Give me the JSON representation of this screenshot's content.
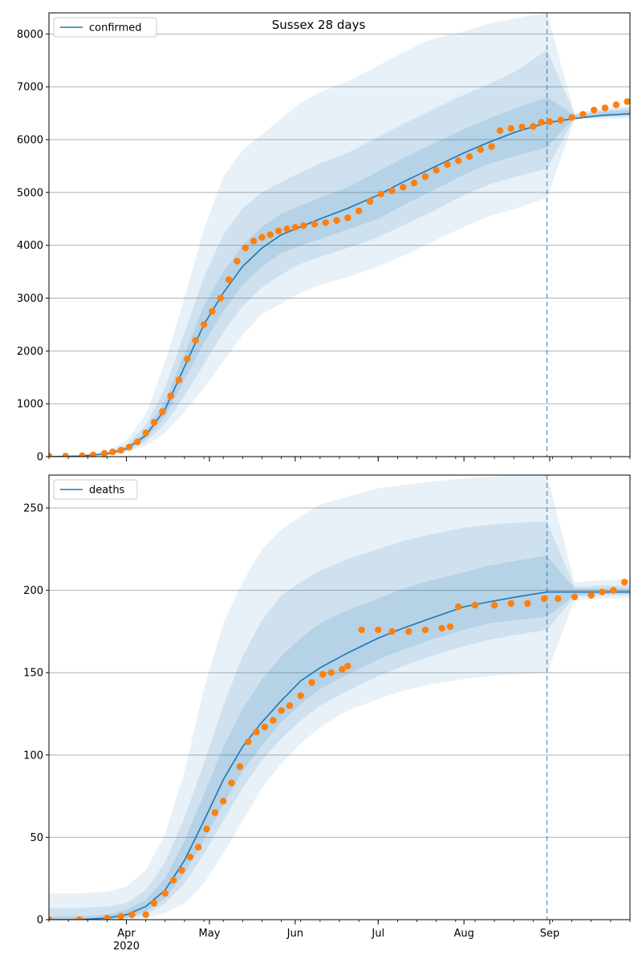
{
  "figure": {
    "title": "Sussex 28 days"
  },
  "colors": {
    "model": "#1f77b4",
    "band": "#1f77b4",
    "observed": "#ff7f0e",
    "grid": "#b0b0b0",
    "forecast_line": "#1f77b4"
  },
  "x_ticks": [
    {
      "date": "2020-04-01",
      "label": "Apr",
      "sublabel": "2020"
    },
    {
      "date": "2020-05-01",
      "label": "May",
      "sublabel": ""
    },
    {
      "date": "2020-06-01",
      "label": "Jun",
      "sublabel": ""
    },
    {
      "date": "2020-07-01",
      "label": "Jul",
      "sublabel": ""
    },
    {
      "date": "2020-08-01",
      "label": "Aug",
      "sublabel": ""
    },
    {
      "date": "2020-09-01",
      "label": "Sep",
      "sublabel": ""
    }
  ],
  "chart_data": [
    {
      "type": "line",
      "title": "Sussex 28 days",
      "xlim": [
        "2020-03-04",
        "2020-09-30"
      ],
      "ylim": [
        0,
        8400
      ],
      "yticks": [
        0,
        1000,
        2000,
        3000,
        4000,
        5000,
        6000,
        7000,
        8000
      ],
      "grid": "y",
      "legend": {
        "position": "top-left",
        "entries": [
          "confirmed"
        ]
      },
      "forecast_start": "2020-08-31",
      "model": {
        "name": "confirmed",
        "x": [
          "2020-03-04",
          "2020-03-15",
          "2020-03-25",
          "2020-04-01",
          "2020-04-08",
          "2020-04-15",
          "2020-04-22",
          "2020-04-29",
          "2020-05-06",
          "2020-05-13",
          "2020-05-20",
          "2020-05-27",
          "2020-06-03",
          "2020-06-10",
          "2020-06-20",
          "2020-07-01",
          "2020-07-10",
          "2020-07-20",
          "2020-08-01",
          "2020-08-10",
          "2020-08-20",
          "2020-08-31",
          "2020-09-10",
          "2020-09-20",
          "2020-09-30"
        ],
        "y": [
          0,
          10,
          50,
          150,
          400,
          900,
          1700,
          2500,
          3100,
          3600,
          3950,
          4200,
          4350,
          4500,
          4700,
          4950,
          5200,
          5450,
          5750,
          5950,
          6150,
          6320,
          6400,
          6460,
          6490
        ]
      },
      "bands": [
        {
          "lower": [
            0,
            0,
            20,
            80,
            200,
            450,
            850,
            1300,
            1800,
            2300,
            2700,
            2900,
            3100,
            3250,
            3400,
            3600,
            3800,
            4050,
            4350,
            4550,
            4700,
            4900,
            6380,
            6390,
            6400
          ],
          "upper": [
            0,
            30,
            100,
            300,
            800,
            1800,
            3000,
            4300,
            5300,
            5800,
            6100,
            6400,
            6700,
            6900,
            7100,
            7400,
            7650,
            7900,
            8050,
            8200,
            8300,
            8400,
            6500,
            6590,
            6640
          ]
        },
        {
          "lower": [
            0,
            2,
            30,
            100,
            280,
            620,
            1150,
            1750,
            2350,
            2850,
            3200,
            3450,
            3650,
            3780,
            3950,
            4150,
            4380,
            4620,
            4950,
            5150,
            5300,
            5450,
            6400,
            6420,
            6440
          ],
          "upper": [
            0,
            20,
            80,
            220,
            600,
            1300,
            2350,
            3400,
            4200,
            4700,
            5000,
            5200,
            5380,
            5550,
            5750,
            6050,
            6300,
            6550,
            6850,
            7050,
            7300,
            7700,
            6480,
            6560,
            6600
          ]
        },
        {
          "lower": [
            0,
            5,
            40,
            120,
            340,
            760,
            1450,
            2150,
            2750,
            3250,
            3600,
            3850,
            4000,
            4120,
            4300,
            4500,
            4760,
            5020,
            5340,
            5540,
            5700,
            5850,
            6420,
            6440,
            6460
          ],
          "upper": [
            0,
            15,
            60,
            180,
            480,
            1050,
            1950,
            2850,
            3500,
            4000,
            4350,
            4600,
            4750,
            4900,
            5100,
            5400,
            5650,
            5900,
            6200,
            6400,
            6600,
            6800,
            6460,
            6530,
            6560
          ]
        }
      ],
      "observed": {
        "name": "observed",
        "x": [
          "2020-03-04",
          "2020-03-10",
          "2020-03-16",
          "2020-03-20",
          "2020-03-24",
          "2020-03-27",
          "2020-03-30",
          "2020-04-02",
          "2020-04-05",
          "2020-04-08",
          "2020-04-11",
          "2020-04-14",
          "2020-04-17",
          "2020-04-20",
          "2020-04-23",
          "2020-04-26",
          "2020-04-29",
          "2020-05-02",
          "2020-05-05",
          "2020-05-08",
          "2020-05-11",
          "2020-05-14",
          "2020-05-17",
          "2020-05-20",
          "2020-05-23",
          "2020-05-26",
          "2020-05-29",
          "2020-06-01",
          "2020-06-04",
          "2020-06-08",
          "2020-06-12",
          "2020-06-16",
          "2020-06-20",
          "2020-06-24",
          "2020-06-28",
          "2020-07-02",
          "2020-07-06",
          "2020-07-10",
          "2020-07-14",
          "2020-07-18",
          "2020-07-22",
          "2020-07-26",
          "2020-07-30",
          "2020-08-03",
          "2020-08-07",
          "2020-08-11",
          "2020-08-14",
          "2020-08-18",
          "2020-08-22",
          "2020-08-26",
          "2020-08-29",
          "2020-09-01",
          "2020-09-05",
          "2020-09-09",
          "2020-09-13",
          "2020-09-17",
          "2020-09-21",
          "2020-09-25",
          "2020-09-29"
        ],
        "y": [
          10,
          10,
          15,
          30,
          60,
          90,
          120,
          180,
          280,
          450,
          650,
          850,
          1150,
          1450,
          1850,
          2200,
          2500,
          2750,
          3000,
          3350,
          3700,
          3950,
          4080,
          4150,
          4200,
          4270,
          4310,
          4340,
          4370,
          4400,
          4430,
          4470,
          4520,
          4650,
          4830,
          4970,
          5030,
          5100,
          5180,
          5300,
          5420,
          5530,
          5600,
          5680,
          5810,
          5870,
          6170,
          6210,
          6240,
          6250,
          6330,
          6340,
          6370,
          6420,
          6480,
          6560,
          6600,
          6660,
          6720
        ]
      }
    },
    {
      "type": "line",
      "title": "",
      "xlim": [
        "2020-03-04",
        "2020-09-30"
      ],
      "ylim": [
        0,
        270
      ],
      "yticks": [
        0,
        50,
        100,
        150,
        200,
        250
      ],
      "grid": "y",
      "legend": {
        "position": "top-left",
        "entries": [
          "deaths"
        ]
      },
      "forecast_start": "2020-08-31",
      "model": {
        "name": "deaths",
        "x": [
          "2020-03-04",
          "2020-03-15",
          "2020-03-25",
          "2020-04-01",
          "2020-04-08",
          "2020-04-15",
          "2020-04-22",
          "2020-04-29",
          "2020-05-06",
          "2020-05-13",
          "2020-05-20",
          "2020-05-27",
          "2020-06-03",
          "2020-06-10",
          "2020-06-20",
          "2020-07-01",
          "2020-07-10",
          "2020-07-20",
          "2020-08-01",
          "2020-08-10",
          "2020-08-20",
          "2020-08-31",
          "2020-09-10",
          "2020-09-20",
          "2020-09-30"
        ],
        "y": [
          0,
          0,
          1,
          3,
          8,
          18,
          36,
          60,
          85,
          105,
          120,
          133,
          145,
          153,
          162,
          171,
          177,
          183,
          190,
          193,
          196,
          199,
          199,
          199,
          199
        ]
      },
      "bands": [
        {
          "lower": [
            0,
            0,
            0,
            0,
            1,
            4,
            10,
            22,
            40,
            60,
            80,
            95,
            107,
            117,
            127,
            134,
            139,
            143,
            146,
            148,
            149,
            150,
            194,
            195,
            195
          ],
          "upper": [
            16,
            16,
            17,
            20,
            30,
            52,
            90,
            140,
            180,
            205,
            225,
            237,
            245,
            252,
            257,
            262,
            264,
            266,
            268,
            269,
            270,
            270,
            205,
            206,
            207
          ]
        },
        {
          "lower": [
            0,
            0,
            0,
            1,
            3,
            10,
            22,
            40,
            60,
            80,
            97,
            110,
            121,
            130,
            139,
            148,
            154,
            160,
            166,
            170,
            173,
            176,
            196,
            197,
            197
          ],
          "upper": [
            7,
            7,
            8,
            10,
            18,
            35,
            62,
            95,
            130,
            160,
            182,
            197,
            205,
            212,
            219,
            225,
            230,
            234,
            238,
            240,
            241,
            242,
            202,
            203,
            203
          ]
        },
        {
          "lower": [
            0,
            0,
            0,
            1,
            5,
            13,
            28,
            48,
            70,
            90,
            106,
            120,
            131,
            140,
            149,
            158,
            164,
            170,
            176,
            180,
            182,
            184,
            197,
            198,
            198
          ],
          "upper": [
            2,
            2,
            3,
            6,
            12,
            25,
            48,
            76,
            105,
            128,
            146,
            160,
            171,
            180,
            188,
            195,
            201,
            206,
            211,
            215,
            218,
            221,
            201,
            201,
            201
          ]
        }
      ],
      "observed": {
        "name": "observed",
        "x": [
          "2020-03-04",
          "2020-03-15",
          "2020-03-25",
          "2020-03-30",
          "2020-04-03",
          "2020-04-08",
          "2020-04-11",
          "2020-04-15",
          "2020-04-18",
          "2020-04-21",
          "2020-04-24",
          "2020-04-27",
          "2020-04-30",
          "2020-05-03",
          "2020-05-06",
          "2020-05-09",
          "2020-05-12",
          "2020-05-15",
          "2020-05-18",
          "2020-05-21",
          "2020-05-24",
          "2020-05-27",
          "2020-05-30",
          "2020-06-03",
          "2020-06-07",
          "2020-06-11",
          "2020-06-14",
          "2020-06-18",
          "2020-06-20",
          "2020-06-25",
          "2020-07-01",
          "2020-07-06",
          "2020-07-12",
          "2020-07-18",
          "2020-07-24",
          "2020-07-27",
          "2020-07-30",
          "2020-08-05",
          "2020-08-12",
          "2020-08-18",
          "2020-08-24",
          "2020-08-30",
          "2020-09-04",
          "2020-09-10",
          "2020-09-16",
          "2020-09-20",
          "2020-09-24",
          "2020-09-28"
        ],
        "y": [
          0,
          0,
          1,
          2,
          3,
          3,
          10,
          16,
          24,
          30,
          38,
          44,
          55,
          65,
          72,
          83,
          93,
          108,
          114,
          117,
          121,
          127,
          130,
          136,
          144,
          149,
          150,
          152,
          154,
          176,
          176,
          175,
          175,
          176,
          177,
          178,
          190,
          191,
          191,
          192,
          192,
          195,
          195,
          196,
          197,
          199,
          200,
          205
        ]
      }
    }
  ]
}
